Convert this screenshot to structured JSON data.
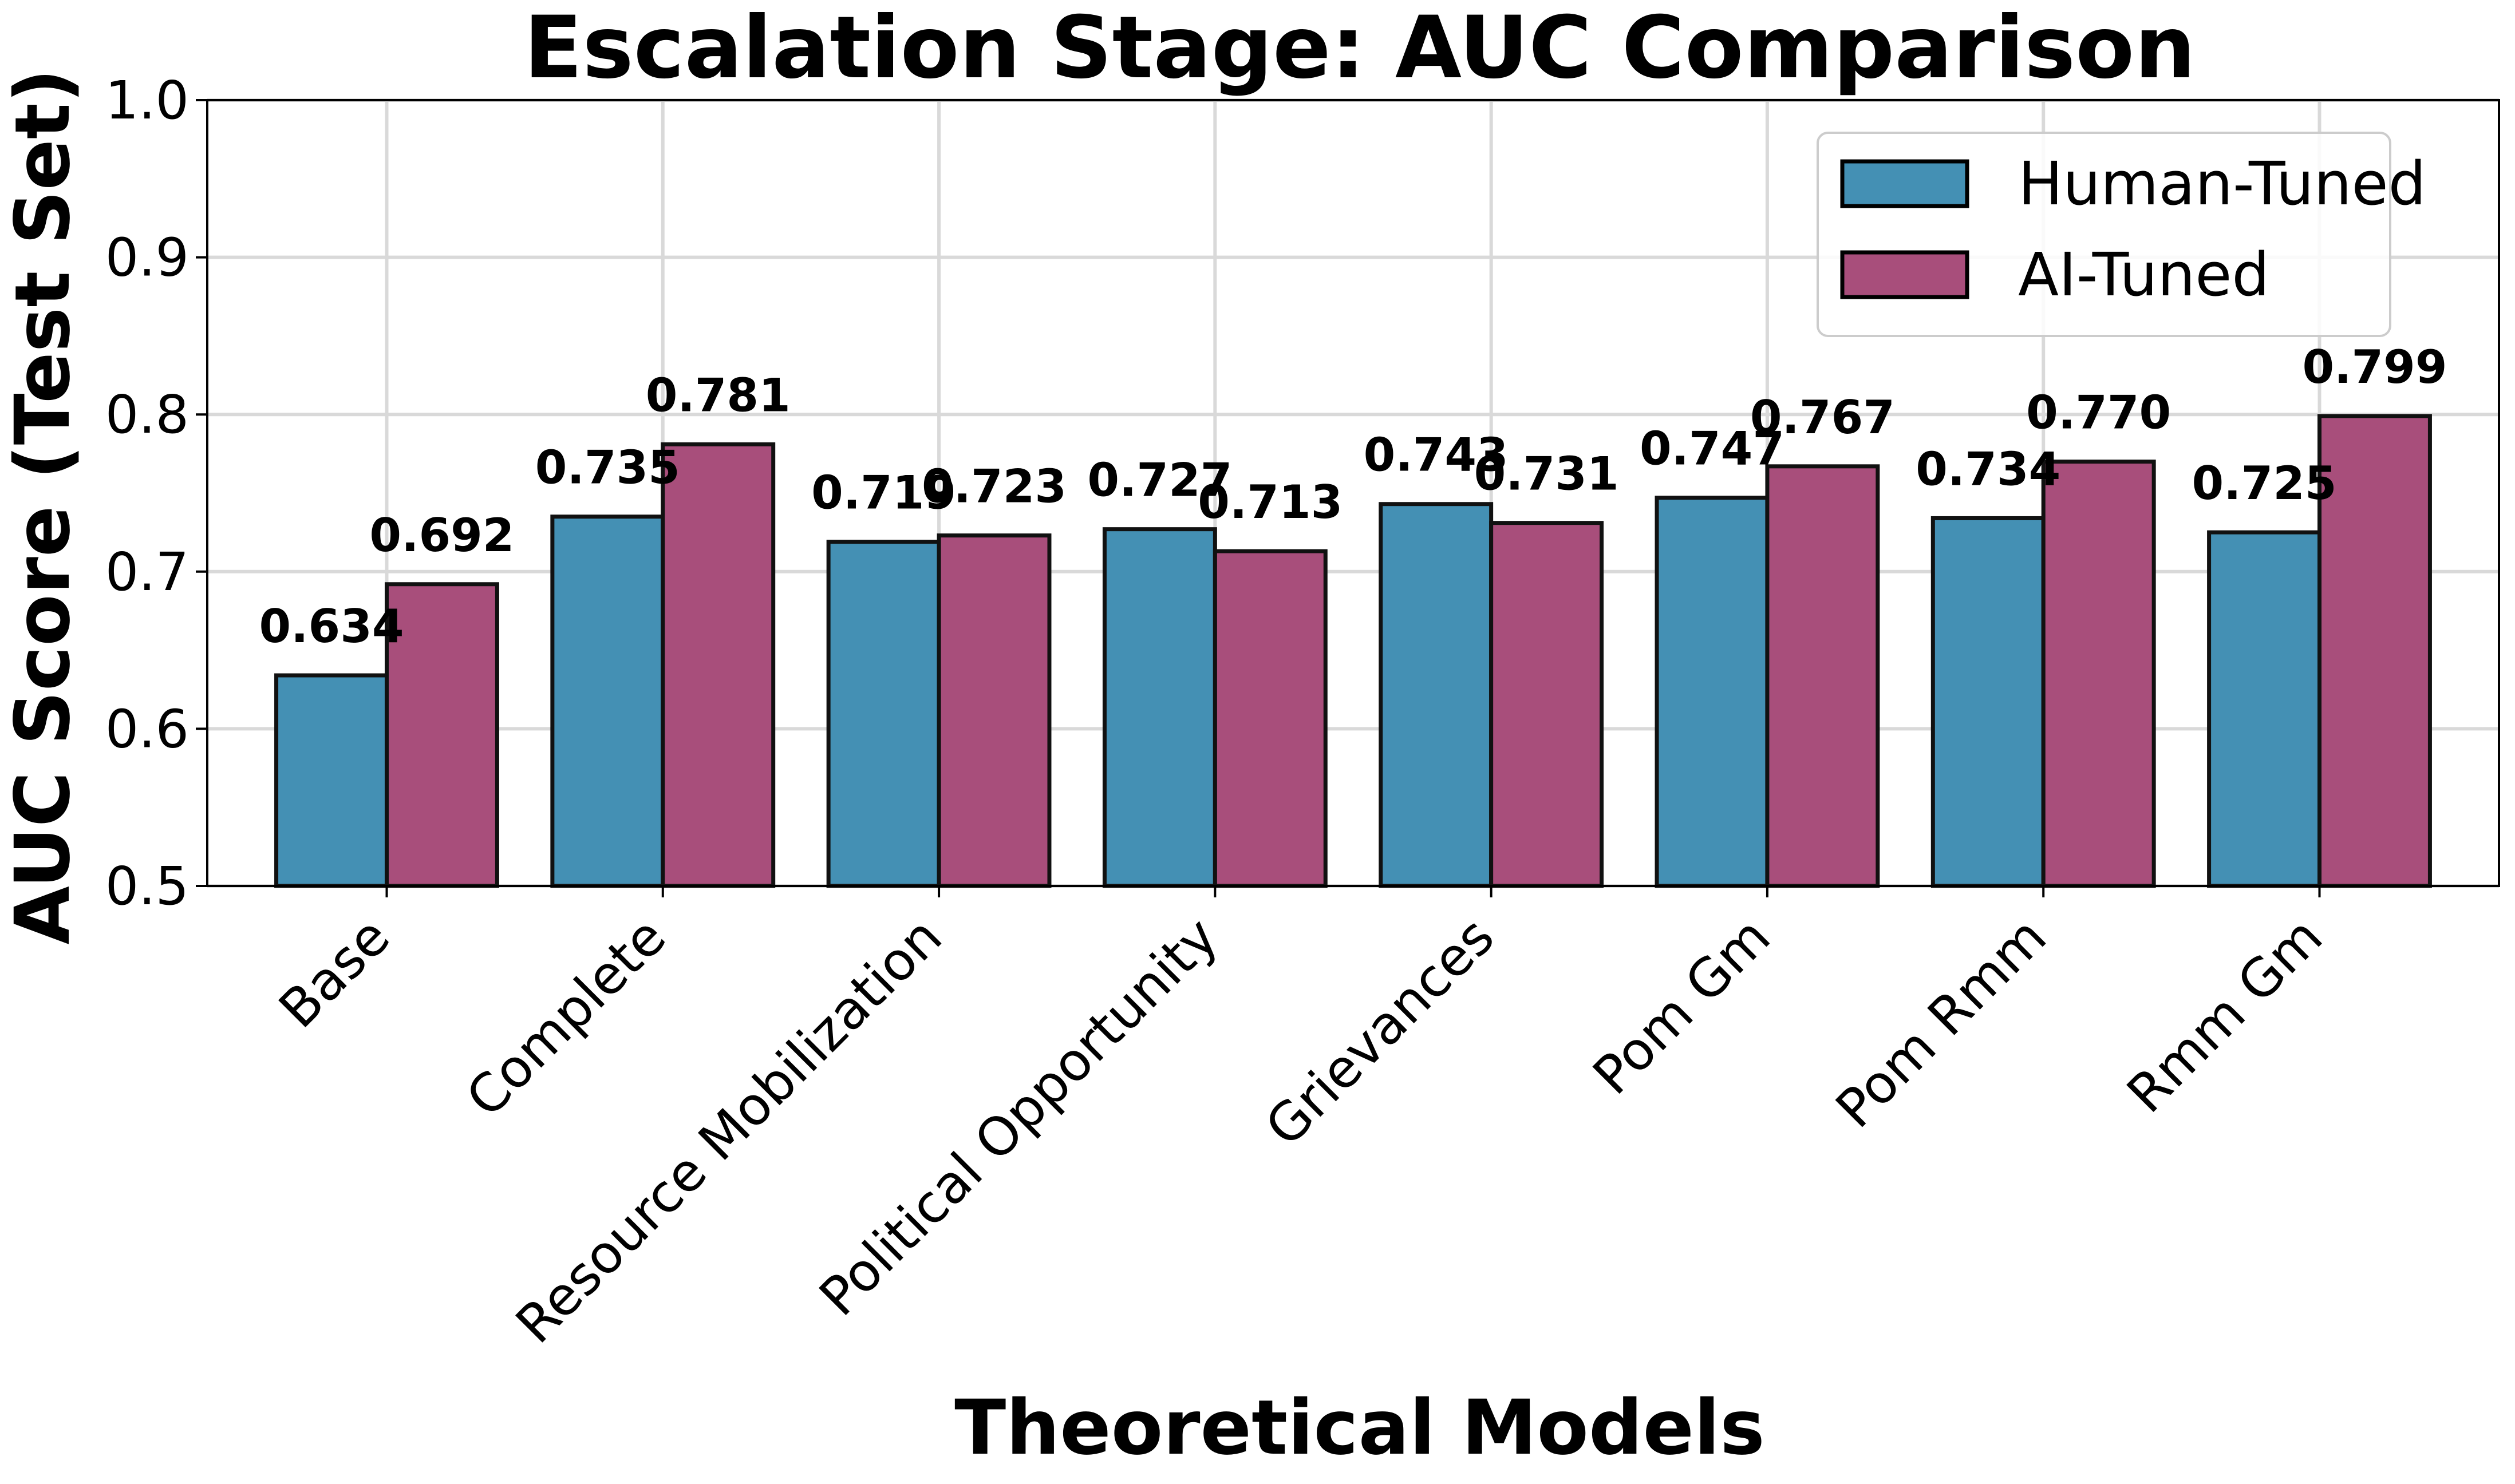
{
  "chart_data": {
    "type": "bar",
    "title": "Escalation Stage: AUC Comparison",
    "xlabel": "Theoretical Models",
    "ylabel": "AUC Score (Test Set)",
    "ylim": [
      0.5,
      1.0
    ],
    "yticks": [
      "0.5",
      "0.6",
      "0.7",
      "0.8",
      "0.9",
      "1.0"
    ],
    "grid": true,
    "legend_position": "top-right",
    "categories": [
      "Base",
      "Complete",
      "Resource Mobilization",
      "Political Opportunity",
      "Grievances",
      "Pom Gm",
      "Pom Rmm",
      "Rmm Gm"
    ],
    "series": [
      {
        "name": "Human-Tuned",
        "color": "#4490b4",
        "values": [
          0.634,
          0.735,
          0.719,
          0.727,
          0.743,
          0.747,
          0.734,
          0.725
        ],
        "labels": [
          "0.634",
          "0.735",
          "0.719",
          "0.727",
          "0.743",
          "0.747",
          "0.734",
          "0.725"
        ]
      },
      {
        "name": "AI-Tuned",
        "color": "#a84e7b",
        "values": [
          0.692,
          0.781,
          0.723,
          0.713,
          0.731,
          0.767,
          0.77,
          0.799
        ],
        "labels": [
          "0.692",
          "0.781",
          "0.723",
          "0.713",
          "0.731",
          "0.767",
          "0.770",
          "0.799"
        ]
      }
    ]
  }
}
